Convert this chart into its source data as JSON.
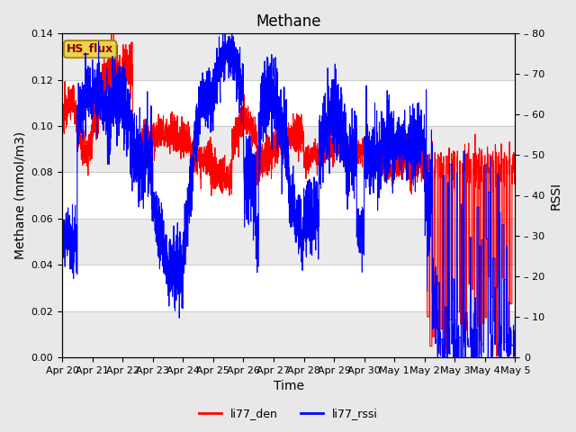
{
  "title": "Methane",
  "xlabel": "Time",
  "ylabel_left": "Methane (mmol/m3)",
  "ylabel_right": "RSSI",
  "ylim_left": [
    0.0,
    0.14
  ],
  "ylim_right": [
    0,
    80
  ],
  "yticks_left": [
    0.0,
    0.02,
    0.04,
    0.06,
    0.08,
    0.1,
    0.12,
    0.14
  ],
  "yticks_right": [
    0,
    10,
    20,
    30,
    40,
    50,
    60,
    70,
    80
  ],
  "legend_labels": [
    "li77_den",
    "li77_rssi"
  ],
  "hs_flux_label": "HS_flux",
  "hs_flux_bg_color": "#e8d44d",
  "hs_flux_text_color": "#8b0000",
  "hs_flux_edge_color": "#a08000",
  "fig_bg_color": "#e8e8e8",
  "plot_bg_color": "#ffffff",
  "grid_color": "#cccccc",
  "title_fontsize": 12,
  "axis_label_fontsize": 10,
  "tick_fontsize": 8,
  "line_width": 0.8,
  "x_tick_labels": [
    "Apr 20",
    "Apr 21",
    "Apr 22",
    "Apr 23",
    "Apr 24",
    "Apr 25",
    "Apr 26",
    "Apr 27",
    "Apr 28",
    "Apr 29",
    "Apr 30",
    "May 1",
    "May 2",
    "May 3",
    "May 4",
    "May 5"
  ]
}
